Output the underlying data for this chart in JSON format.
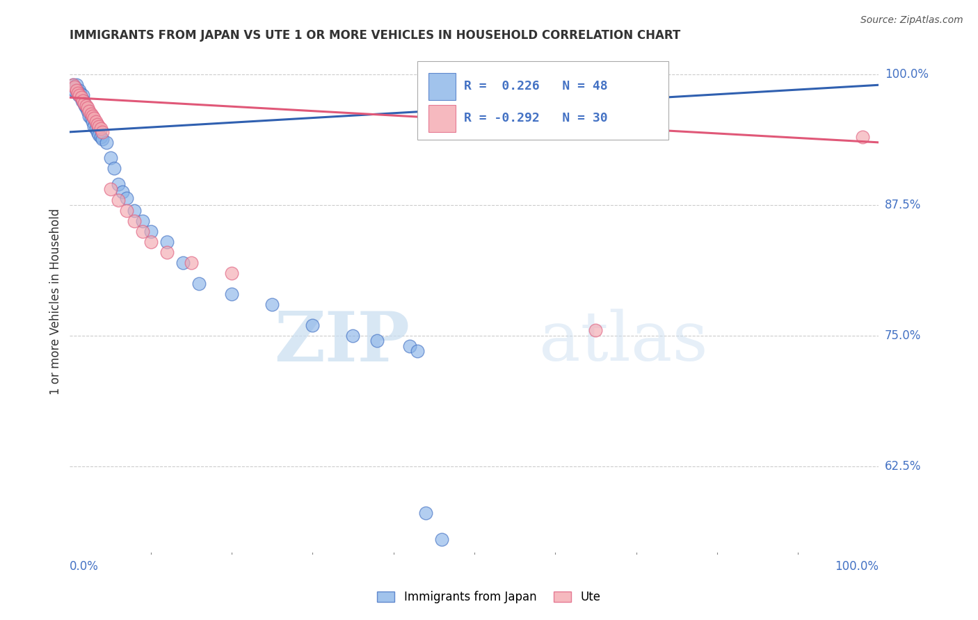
{
  "title": "IMMIGRANTS FROM JAPAN VS UTE 1 OR MORE VEHICLES IN HOUSEHOLD CORRELATION CHART",
  "source": "Source: ZipAtlas.com",
  "ylabel": "1 or more Vehicles in Household",
  "ytick_labels": [
    "100.0%",
    "87.5%",
    "75.0%",
    "62.5%"
  ],
  "ytick_vals": [
    1.0,
    0.875,
    0.75,
    0.625
  ],
  "xlim": [
    0.0,
    1.0
  ],
  "ylim": [
    0.54,
    1.025
  ],
  "legend_text_blue": "R =  0.226   N = 48",
  "legend_text_pink": "R = -0.292   N = 30",
  "legend_label_blue": "Immigrants from Japan",
  "legend_label_pink": "Ute",
  "blue_color": "#8ab4e8",
  "pink_color": "#f4a8b0",
  "blue_edge_color": "#4472c4",
  "pink_edge_color": "#e06080",
  "blue_line_color": "#3060b0",
  "pink_line_color": "#e05878",
  "blue_scatter_x": [
    0.004,
    0.005,
    0.006,
    0.007,
    0.008,
    0.009,
    0.01,
    0.011,
    0.012,
    0.013,
    0.014,
    0.015,
    0.016,
    0.017,
    0.018,
    0.019,
    0.02,
    0.022,
    0.024,
    0.026,
    0.028,
    0.03,
    0.032,
    0.034,
    0.036,
    0.038,
    0.04,
    0.045,
    0.05,
    0.055,
    0.06,
    0.065,
    0.07,
    0.08,
    0.09,
    0.1,
    0.12,
    0.14,
    0.16,
    0.2,
    0.25,
    0.3,
    0.35,
    0.38,
    0.42,
    0.43,
    0.44,
    0.46
  ],
  "blue_scatter_y": [
    0.99,
    0.985,
    0.985,
    0.988,
    0.99,
    0.985,
    0.982,
    0.98,
    0.985,
    0.982,
    0.978,
    0.975,
    0.98,
    0.975,
    0.972,
    0.97,
    0.968,
    0.965,
    0.96,
    0.958,
    0.955,
    0.95,
    0.948,
    0.945,
    0.942,
    0.94,
    0.938,
    0.935,
    0.92,
    0.91,
    0.895,
    0.888,
    0.882,
    0.87,
    0.86,
    0.85,
    0.84,
    0.82,
    0.8,
    0.79,
    0.78,
    0.76,
    0.75,
    0.745,
    0.74,
    0.735,
    0.58,
    0.555
  ],
  "pink_scatter_x": [
    0.004,
    0.006,
    0.008,
    0.01,
    0.012,
    0.014,
    0.016,
    0.018,
    0.02,
    0.022,
    0.024,
    0.026,
    0.028,
    0.03,
    0.032,
    0.034,
    0.036,
    0.038,
    0.04,
    0.05,
    0.06,
    0.07,
    0.08,
    0.09,
    0.1,
    0.12,
    0.15,
    0.2,
    0.65,
    0.98
  ],
  "pink_scatter_y": [
    0.99,
    0.988,
    0.985,
    0.982,
    0.98,
    0.978,
    0.975,
    0.972,
    0.97,
    0.968,
    0.965,
    0.962,
    0.96,
    0.958,
    0.955,
    0.952,
    0.95,
    0.948,
    0.945,
    0.89,
    0.88,
    0.87,
    0.86,
    0.85,
    0.84,
    0.83,
    0.82,
    0.81,
    0.755,
    0.94
  ],
  "blue_trend_x": [
    0.0,
    1.0
  ],
  "blue_trend_y": [
    0.945,
    0.99
  ],
  "pink_trend_x": [
    0.0,
    1.0
  ],
  "pink_trend_y": [
    0.978,
    0.935
  ],
  "watermark_zip": "ZIP",
  "watermark_atlas": "atlas",
  "background_color": "#ffffff",
  "grid_color": "#cccccc",
  "tick_color": "#4472c4",
  "title_fontsize": 12,
  "axis_fontsize": 12,
  "source_fontsize": 10
}
